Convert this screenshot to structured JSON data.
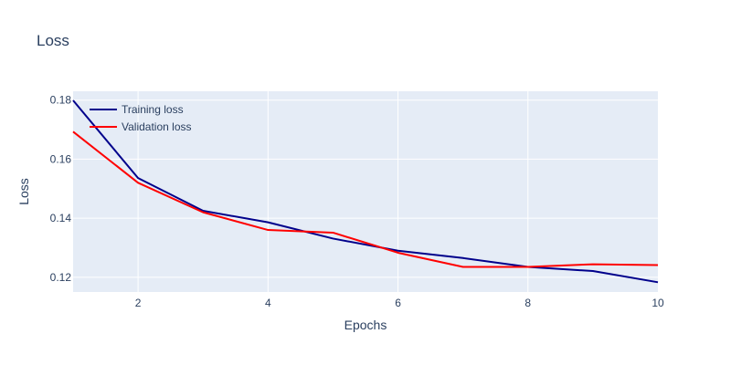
{
  "chart_data": {
    "type": "line",
    "title": "Loss",
    "xlabel": "Epochs",
    "ylabel": "Loss",
    "xlim": [
      1,
      10
    ],
    "ylim": [
      0.115,
      0.183
    ],
    "xticks": [
      2,
      4,
      6,
      8,
      10
    ],
    "yticks": [
      0.12,
      0.14,
      0.16,
      0.18
    ],
    "grid": true,
    "legend_position": "top-left",
    "x": [
      1,
      2,
      3,
      4,
      5,
      6,
      7,
      8,
      9,
      10
    ],
    "series": [
      {
        "name": "Training loss",
        "color": "#00008b",
        "values": [
          0.1799,
          0.1536,
          0.1425,
          0.1386,
          0.1331,
          0.129,
          0.1265,
          0.1235,
          0.1221,
          0.1183
        ]
      },
      {
        "name": "Validation loss",
        "color": "#ff0000",
        "values": [
          0.1693,
          0.152,
          0.142,
          0.136,
          0.1351,
          0.1283,
          0.1235,
          0.1235,
          0.1244,
          0.1241
        ]
      }
    ]
  }
}
